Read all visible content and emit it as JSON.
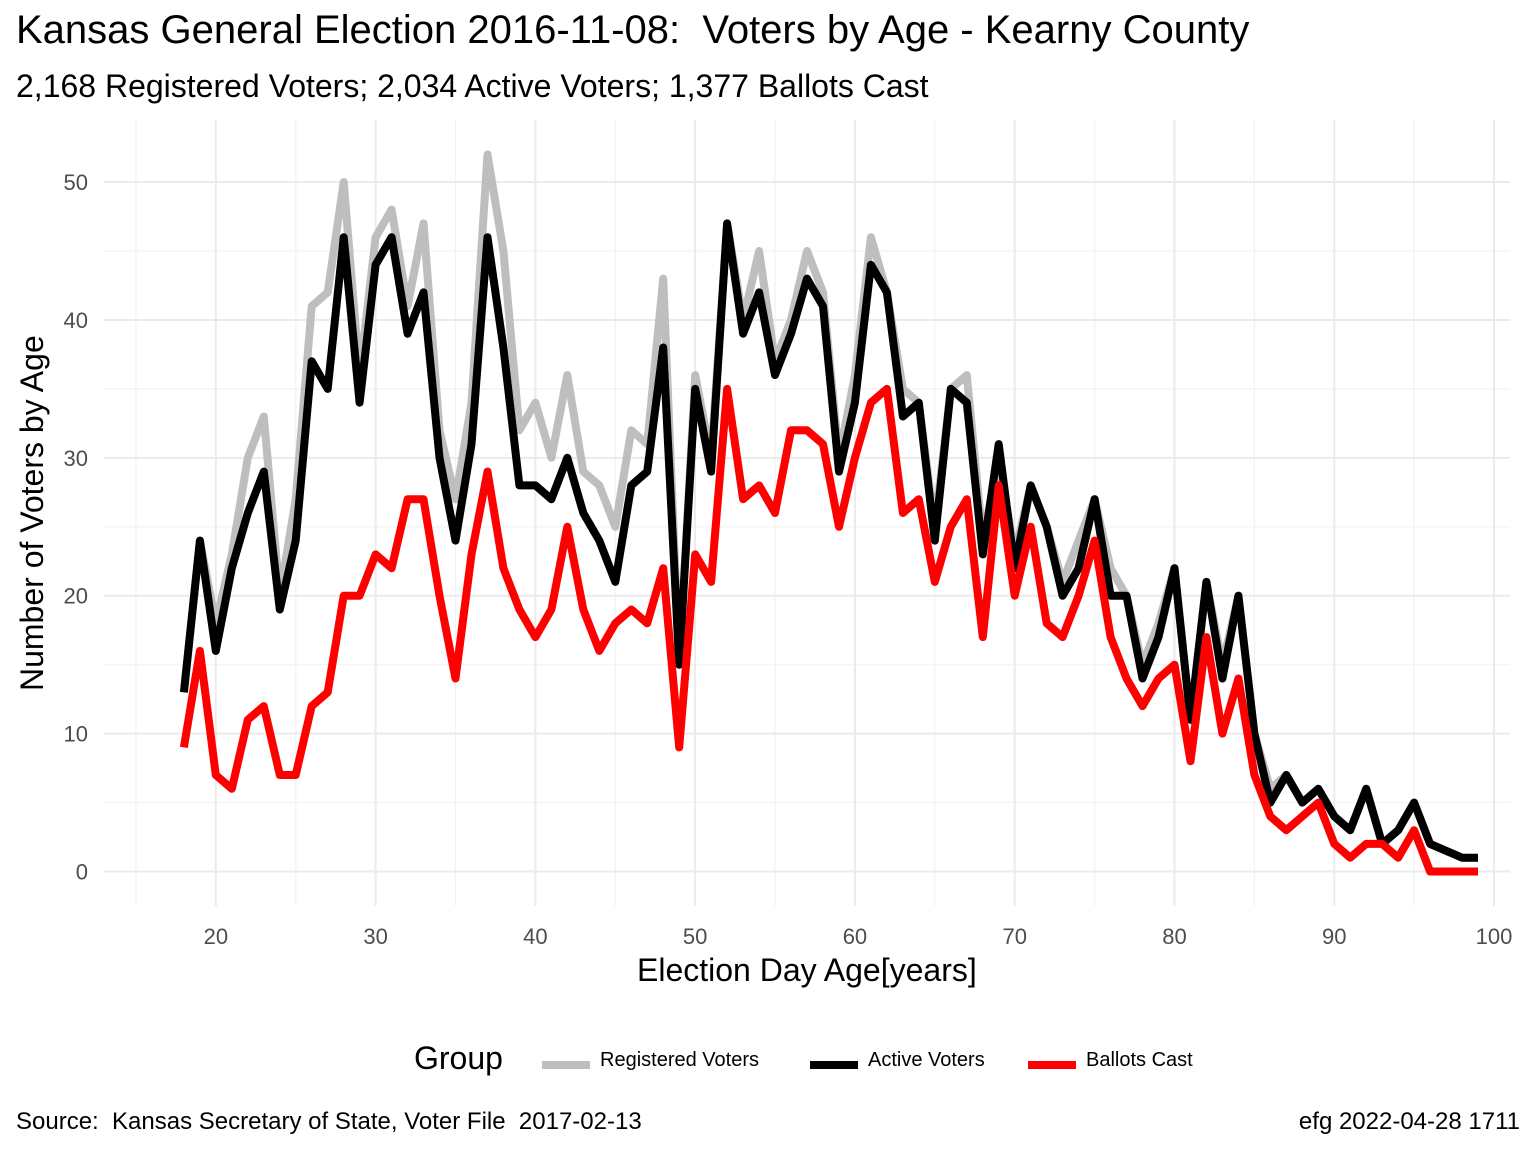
{
  "header": {
    "title": "Kansas General Election 2016-11-08:  Voters by Age - Kearny County",
    "subtitle": "2,168 Registered Voters; 2,034 Active Voters; 1,377 Ballots Cast"
  },
  "footer": {
    "source": "Source:  Kansas Secretary of State, Voter File  2017-02-13",
    "credit": "efg 2022-04-28 1711"
  },
  "chart_data": {
    "type": "line",
    "title": "Kansas General Election 2016-11-08:  Voters by Age - Kearny County",
    "subtitle": "2,168 Registered Voters; 2,034 Active Voters; 1,377 Ballots Cast",
    "xlabel": "Election Day Age[years]",
    "ylabel": "Number of Voters by Age",
    "xlim": [
      13,
      101
    ],
    "ylim": [
      -2.5,
      54.5
    ],
    "x_ticks": [
      20,
      30,
      40,
      50,
      60,
      70,
      80,
      90,
      100
    ],
    "y_ticks": [
      0,
      10,
      20,
      30,
      40,
      50
    ],
    "grid": true,
    "legend": {
      "title": "Group",
      "placement": "bottom"
    },
    "x": [
      18,
      19,
      20,
      21,
      22,
      23,
      24,
      25,
      26,
      27,
      28,
      29,
      30,
      31,
      32,
      33,
      34,
      35,
      36,
      37,
      38,
      39,
      40,
      41,
      42,
      43,
      44,
      45,
      46,
      47,
      48,
      49,
      50,
      51,
      52,
      53,
      54,
      55,
      56,
      57,
      58,
      59,
      60,
      61,
      62,
      63,
      64,
      65,
      66,
      67,
      68,
      69,
      70,
      71,
      72,
      73,
      74,
      75,
      76,
      77,
      78,
      79,
      80,
      81,
      82,
      83,
      84,
      85,
      86,
      87,
      88,
      89,
      90,
      91,
      92,
      93,
      94,
      95,
      96,
      97,
      98,
      99
    ],
    "series": [
      {
        "name": "Registered Voters",
        "color": "#bebebe",
        "values": [
          13,
          24,
          18,
          23,
          30,
          33,
          20,
          27,
          41,
          42,
          50,
          36,
          46,
          48,
          41,
          47,
          32,
          27,
          34,
          52,
          45,
          32,
          34,
          30,
          36,
          29,
          28,
          25,
          32,
          31,
          43,
          15,
          36,
          30,
          47,
          40,
          45,
          37,
          40,
          45,
          42,
          30,
          36,
          46,
          42,
          35,
          34,
          25,
          35,
          36,
          24,
          30,
          23,
          28,
          25,
          21,
          24,
          27,
          22,
          20,
          15,
          18,
          22,
          11,
          21,
          15,
          20,
          10,
          6,
          7,
          5,
          6,
          4,
          3,
          6,
          2,
          3,
          5,
          2,
          1.5,
          1,
          1
        ]
      },
      {
        "name": "Active Voters",
        "color": "#000000",
        "values": [
          13,
          24,
          16,
          22,
          26,
          29,
          19,
          24,
          37,
          35,
          46,
          34,
          44,
          46,
          39,
          42,
          30,
          24,
          31,
          46,
          38,
          28,
          28,
          27,
          30,
          26,
          24,
          21,
          28,
          29,
          38,
          15,
          35,
          29,
          47,
          39,
          42,
          36,
          39,
          43,
          41,
          29,
          34,
          44,
          42,
          33,
          34,
          24,
          35,
          34,
          23,
          31,
          22,
          28,
          25,
          20,
          22,
          27,
          20,
          20,
          14,
          17,
          22,
          11,
          21,
          14,
          20,
          10,
          5,
          7,
          5,
          6,
          4,
          3,
          6,
          2,
          3,
          5,
          2,
          1.5,
          1,
          1
        ]
      },
      {
        "name": "Ballots Cast",
        "color": "#ff0000",
        "values": [
          9,
          16,
          7,
          6,
          11,
          12,
          7,
          7,
          12,
          13,
          20,
          20,
          23,
          22,
          27,
          27,
          20,
          14,
          23,
          29,
          22,
          19,
          17,
          19,
          25,
          19,
          16,
          18,
          19,
          18,
          22,
          9,
          23,
          21,
          35,
          27,
          28,
          26,
          32,
          32,
          31,
          25,
          30,
          34,
          35,
          26,
          27,
          21,
          25,
          27,
          17,
          28,
          20,
          25,
          18,
          17,
          20,
          24,
          17,
          14,
          12,
          14,
          15,
          8,
          17,
          10,
          14,
          7,
          4,
          3,
          4,
          5,
          2,
          1,
          2,
          2,
          1,
          3,
          0,
          0,
          0,
          0
        ]
      }
    ]
  }
}
